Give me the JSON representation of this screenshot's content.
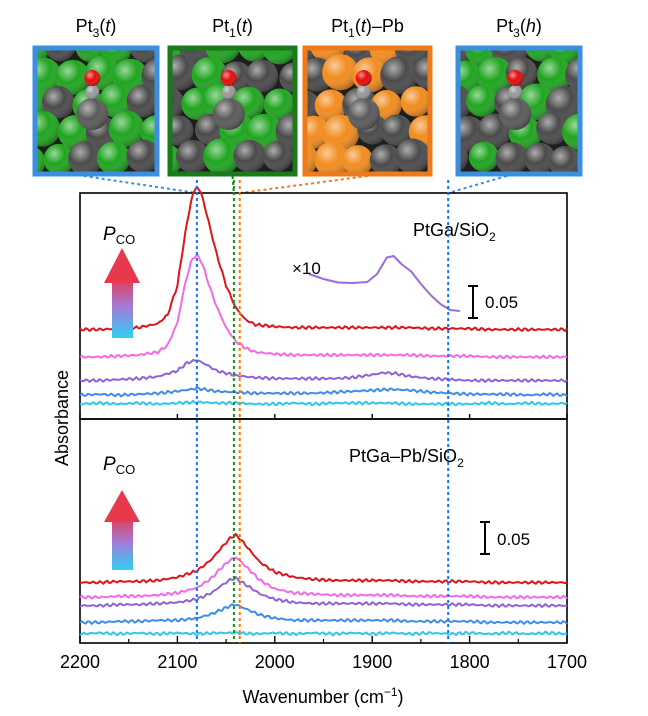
{
  "chart_data": {
    "type": "line",
    "xlabel": "Wavenumber (cm",
    "xlabel_sup": "−1",
    "xlabel_close": ")",
    "ylabel": "Absorbance",
    "xlim": [
      2200,
      1700
    ],
    "x_ticks": [
      "2200",
      "2100",
      "2000",
      "1900",
      "1800",
      "1700"
    ],
    "x_tick_values": [
      2200,
      2100,
      2000,
      1900,
      1800,
      1700
    ],
    "reference_lines": [
      {
        "x": 2080,
        "color": "#1f6fe6",
        "style": "dotted"
      },
      {
        "x": 2042,
        "color": "#1a8a1a",
        "style": "dotted"
      },
      {
        "x": 2036,
        "color": "#f07a14",
        "style": "dotted"
      },
      {
        "x": 1822,
        "color": "#1f6fe6",
        "style": "dotted"
      }
    ],
    "insets": [
      {
        "label_main": "Pt",
        "label_sub": "3",
        "label_suffix": "(t)",
        "border": "#3a8fe0",
        "atom": "#1fa51f"
      },
      {
        "label_main": "Pt",
        "label_sub": "1",
        "label_suffix": "(t)",
        "border": "#1a7a1a",
        "atom": "#1fa51f"
      },
      {
        "label_main": "Pt",
        "label_sub": "1",
        "label_suffix": "(t)–Pb",
        "border": "#ee7a1a",
        "atom": "#f28c1e"
      },
      {
        "label_main": "Pt",
        "label_sub": "3",
        "label_suffix": "(h)",
        "border": "#3a8fe0",
        "atom": "#1fa51f"
      }
    ],
    "panels": [
      {
        "label_main": "PtGa/SiO",
        "label_sub": "2",
        "pressure_label": "P",
        "pressure_sub": "CO",
        "scale_bar_label": "0.05",
        "scale_bar_value": 0.05,
        "magnified_label": "×10",
        "magnified": {
          "color": "#9b6be0",
          "x": [
            1965,
            1950,
            1935,
            1920,
            1905,
            1895,
            1885,
            1878,
            1870,
            1860,
            1850,
            1840,
            1830,
            1820,
            1810
          ],
          "y": [
            0.09,
            0.08,
            0.073,
            0.072,
            0.074,
            0.09,
            0.123,
            0.126,
            0.11,
            0.095,
            0.07,
            0.048,
            0.03,
            0.018,
            0.016
          ]
        },
        "series": [
          {
            "color": "#2ec6ee",
            "offset": 0.0,
            "peaks": [],
            "x": [
              2200,
              2180,
              2160,
              2140,
              2120,
              2100,
              2080,
              2060,
              2040,
              2020,
              2000,
              1980,
              1960,
              1940,
              1920,
              1900,
              1880,
              1860,
              1840,
              1820,
              1800,
              1780,
              1760,
              1740,
              1720,
              1700
            ],
            "y": [
              0.001,
              0.002,
              0.001,
              0.002,
              0.001,
              0.002,
              0.003,
              0.002,
              0.002,
              0.001,
              0.001,
              0.002,
              0.001,
              0.002,
              0.002,
              0.002,
              0.002,
              0.001,
              0.001,
              0.001,
              0.001,
              0.002,
              0.001,
              0.002,
              0.001,
              0.002
            ]
          },
          {
            "color": "#3f8ee6",
            "offset": 0.01,
            "peaks": [],
            "x": [
              2200,
              2180,
              2160,
              2140,
              2120,
              2100,
              2080,
              2060,
              2040,
              2020,
              2000,
              1980,
              1960,
              1940,
              1920,
              1900,
              1880,
              1860,
              1840,
              1820,
              1800,
              1780,
              1760,
              1740,
              1720,
              1700
            ],
            "y": [
              0.0,
              0.001,
              0.0,
              0.001,
              0.002,
              0.004,
              0.007,
              0.004,
              0.003,
              0.002,
              0.002,
              0.002,
              0.002,
              0.003,
              0.004,
              0.005,
              0.006,
              0.005,
              0.003,
              0.002,
              0.001,
              0.001,
              0.001,
              0.0,
              0.001,
              0.0
            ]
          },
          {
            "color": "#8f63d6",
            "offset": 0.025,
            "peaks": [],
            "x": [
              2200,
              2180,
              2160,
              2140,
              2120,
              2100,
              2090,
              2080,
              2070,
              2060,
              2040,
              2020,
              2000,
              1980,
              1960,
              1940,
              1920,
              1900,
              1888,
              1875,
              1860,
              1840,
              1820,
              1800,
              1780,
              1760,
              1740,
              1720,
              1700
            ],
            "y": [
              0.0,
              0.0,
              0.001,
              0.002,
              0.004,
              0.01,
              0.018,
              0.021,
              0.016,
              0.01,
              0.005,
              0.003,
              0.002,
              0.002,
              0.002,
              0.002,
              0.003,
              0.006,
              0.008,
              0.007,
              0.004,
              0.002,
              0.001,
              0.0,
              0.0,
              0.0,
              0.0,
              0.0,
              0.0
            ]
          },
          {
            "color": "#f26ae8",
            "offset": 0.049,
            "peaks": [],
            "x": [
              2200,
              2180,
              2160,
              2140,
              2120,
              2110,
              2100,
              2092,
              2085,
              2080,
              2075,
              2068,
              2060,
              2050,
              2040,
              2030,
              2020,
              2000,
              1980,
              1960,
              1940,
              1920,
              1900,
              1880,
              1860,
              1840,
              1820,
              1800,
              1780,
              1760,
              1740,
              1720,
              1700
            ],
            "y": [
              0.0,
              0.0,
              0.001,
              0.002,
              0.005,
              0.012,
              0.035,
              0.075,
              0.1,
              0.104,
              0.097,
              0.075,
              0.052,
              0.03,
              0.016,
              0.009,
              0.005,
              0.003,
              0.002,
              0.002,
              0.002,
              0.002,
              0.002,
              0.002,
              0.002,
              0.001,
              0.001,
              0.001,
              0.0,
              0.0,
              0.0,
              0.0,
              0.0
            ]
          },
          {
            "color": "#e0141b",
            "offset": 0.077,
            "peaks": [],
            "x": [
              2200,
              2180,
              2160,
              2140,
              2120,
              2110,
              2100,
              2092,
              2085,
              2080,
              2075,
              2068,
              2060,
              2050,
              2040,
              2030,
              2020,
              2000,
              1980,
              1960,
              1940,
              1920,
              1900,
              1880,
              1860,
              1840,
              1820,
              1800,
              1780,
              1760,
              1740,
              1720,
              1700
            ],
            "y": [
              0.0,
              0.0,
              0.001,
              0.002,
              0.006,
              0.015,
              0.045,
              0.098,
              0.136,
              0.146,
              0.138,
              0.11,
              0.078,
              0.045,
              0.022,
              0.01,
              0.005,
              0.003,
              0.002,
              0.002,
              0.002,
              0.002,
              0.002,
              0.002,
              0.002,
              0.001,
              0.001,
              0.001,
              0.0,
              0.0,
              0.0,
              0.0,
              0.0
            ]
          }
        ]
      },
      {
        "label_main": "PtGa–Pb/SiO",
        "label_sub": "2",
        "pressure_label": "P",
        "pressure_sub": "CO",
        "scale_bar_label": "0.05",
        "scale_bar_value": 0.05,
        "series": [
          {
            "color": "#2ec6ee",
            "offset": 0.0,
            "x": [
              2200,
              2180,
              2160,
              2140,
              2120,
              2100,
              2080,
              2060,
              2040,
              2020,
              2000,
              1980,
              1960,
              1940,
              1920,
              1900,
              1880,
              1860,
              1840,
              1820,
              1800,
              1780,
              1760,
              1740,
              1720,
              1700
            ],
            "y": [
              0.001,
              0.002,
              0.001,
              0.002,
              0.001,
              0.002,
              0.001,
              0.002,
              0.002,
              0.001,
              0.002,
              0.001,
              0.002,
              0.001,
              0.002,
              0.001,
              0.002,
              0.001,
              0.002,
              0.001,
              0.002,
              0.001,
              0.002,
              0.001,
              0.002,
              0.001
            ]
          },
          {
            "color": "#3f8ee6",
            "offset": 0.012,
            "x": [
              2200,
              2180,
              2160,
              2140,
              2120,
              2100,
              2080,
              2065,
              2055,
              2045,
              2040,
              2035,
              2025,
              2015,
              2000,
              1980,
              1960,
              1940,
              1920,
              1900,
              1880,
              1860,
              1840,
              1820,
              1800,
              1780,
              1760,
              1740,
              1720,
              1700
            ],
            "y": [
              0.0,
              0.0,
              0.001,
              0.001,
              0.002,
              0.002,
              0.004,
              0.008,
              0.012,
              0.016,
              0.017,
              0.015,
              0.011,
              0.007,
              0.004,
              0.002,
              0.002,
              0.002,
              0.002,
              0.002,
              0.002,
              0.001,
              0.001,
              0.001,
              0.001,
              0.0,
              0.0,
              0.0,
              0.0,
              0.0
            ]
          },
          {
            "color": "#8f63d6",
            "offset": 0.028,
            "x": [
              2200,
              2180,
              2160,
              2140,
              2120,
              2100,
              2080,
              2065,
              2055,
              2045,
              2040,
              2035,
              2025,
              2015,
              2000,
              1980,
              1960,
              1940,
              1920,
              1900,
              1880,
              1860,
              1840,
              1820,
              1800,
              1780,
              1760,
              1740,
              1720,
              1700
            ],
            "y": [
              0.0,
              0.0,
              0.001,
              0.001,
              0.002,
              0.003,
              0.006,
              0.012,
              0.019,
              0.025,
              0.026,
              0.023,
              0.017,
              0.011,
              0.006,
              0.003,
              0.002,
              0.002,
              0.002,
              0.002,
              0.002,
              0.001,
              0.001,
              0.001,
              0.001,
              0.0,
              0.0,
              0.0,
              0.0,
              0.0
            ]
          },
          {
            "color": "#f26ae8",
            "offset": 0.036,
            "x": [
              2200,
              2180,
              2160,
              2140,
              2120,
              2100,
              2080,
              2065,
              2055,
              2045,
              2040,
              2035,
              2025,
              2015,
              2000,
              1980,
              1960,
              1940,
              1920,
              1900,
              1880,
              1860,
              1840,
              1820,
              1800,
              1780,
              1760,
              1740,
              1720,
              1700
            ],
            "y": [
              0.0,
              0.0,
              0.001,
              0.001,
              0.002,
              0.004,
              0.009,
              0.018,
              0.028,
              0.036,
              0.038,
              0.034,
              0.025,
              0.016,
              0.008,
              0.004,
              0.003,
              0.002,
              0.002,
              0.002,
              0.002,
              0.001,
              0.001,
              0.001,
              0.001,
              0.0,
              0.0,
              0.0,
              0.0,
              0.0
            ]
          },
          {
            "color": "#e0141b",
            "offset": 0.05,
            "x": [
              2200,
              2180,
              2160,
              2140,
              2120,
              2100,
              2080,
              2065,
              2055,
              2045,
              2040,
              2035,
              2025,
              2015,
              2000,
              1980,
              1960,
              1940,
              1920,
              1900,
              1880,
              1860,
              1840,
              1820,
              1800,
              1780,
              1760,
              1740,
              1720,
              1700
            ],
            "y": [
              0.0,
              0.0,
              0.001,
              0.001,
              0.002,
              0.005,
              0.011,
              0.022,
              0.033,
              0.043,
              0.045,
              0.041,
              0.03,
              0.019,
              0.01,
              0.005,
              0.003,
              0.002,
              0.002,
              0.002,
              0.002,
              0.001,
              0.001,
              0.001,
              0.001,
              0.0,
              0.0,
              0.0,
              0.0,
              0.0
            ]
          }
        ]
      }
    ]
  }
}
